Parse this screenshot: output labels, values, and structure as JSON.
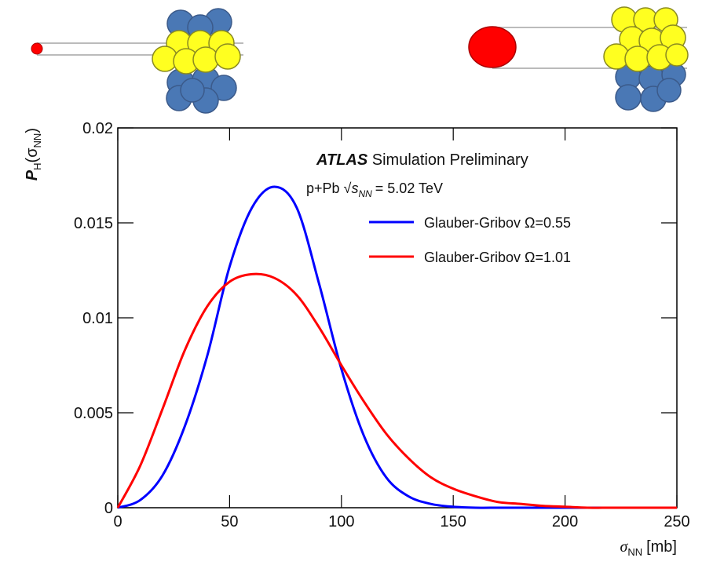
{
  "chart_data": {
    "type": "line",
    "title": "ATLAS",
    "subtitle": "Simulation Preliminary",
    "energy_label": {
      "system": "p+Pb",
      "sqrt": "s",
      "sub": "NN",
      "value": "= 5.02 TeV"
    },
    "x_label": {
      "symbol": "σ",
      "sub": "NN",
      "unit": "[mb]"
    },
    "y_label": {
      "symbol": "P",
      "sub": "H",
      "arg_open": "(σ",
      "arg_sub": "NN",
      "arg_close": ")"
    },
    "x": [
      0,
      10,
      20,
      30,
      40,
      50,
      60,
      70,
      80,
      90,
      100,
      110,
      120,
      130,
      140,
      150,
      160,
      170,
      180,
      190,
      200,
      210,
      220,
      230,
      240,
      250
    ],
    "series": [
      {
        "name": "Glauber-Gribov Ω=0.55",
        "color": "#0000ff",
        "values": [
          0,
          0.0004,
          0.0017,
          0.0043,
          0.008,
          0.0127,
          0.0158,
          0.0169,
          0.0158,
          0.0118,
          0.0073,
          0.0038,
          0.0016,
          0.0006,
          0.0002,
          5e-05,
          0,
          0,
          0,
          0,
          0,
          0,
          0,
          0,
          0,
          0
        ]
      },
      {
        "name": "Glauber-Gribov Ω=1.01",
        "color": "#ff0000",
        "values": [
          0,
          0.0022,
          0.0052,
          0.0083,
          0.0106,
          0.0119,
          0.0123,
          0.0121,
          0.0112,
          0.0095,
          0.0075,
          0.0056,
          0.0039,
          0.0026,
          0.0016,
          0.001,
          0.0006,
          0.0003,
          0.0002,
          0.0001,
          5e-05,
          0,
          0,
          0,
          0,
          0
        ]
      }
    ],
    "xlim": [
      0,
      250
    ],
    "ylim": [
      0,
      0.02
    ],
    "xticks": [
      0,
      50,
      100,
      150,
      200,
      250
    ],
    "yticks": [
      0,
      0.005,
      0.01,
      0.015,
      0.02
    ],
    "grid": false,
    "legend": "upper right"
  }
}
